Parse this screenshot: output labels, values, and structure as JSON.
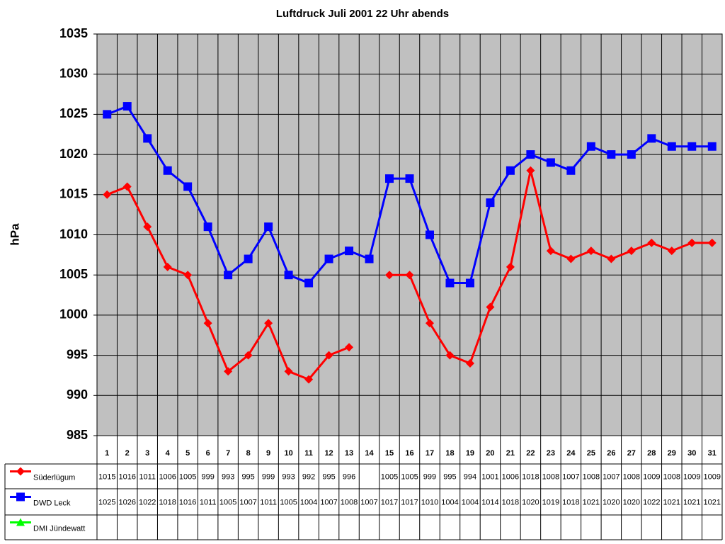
{
  "chart_data": {
    "type": "line",
    "title": "Luftdruck Juli 2001 22 Uhr abends",
    "y_label": "hPa",
    "categories": [
      "1",
      "2",
      "3",
      "4",
      "5",
      "6",
      "7",
      "8",
      "9",
      "10",
      "11",
      "12",
      "13",
      "14",
      "15",
      "16",
      "17",
      "18",
      "19",
      "20",
      "21",
      "22",
      "23",
      "24",
      "25",
      "26",
      "27",
      "28",
      "29",
      "30",
      "31"
    ],
    "series": [
      {
        "name": "Süderlügum",
        "color": "#ff0000",
        "marker": "diamond",
        "values": [
          1015,
          1016,
          1011,
          1006,
          1005,
          999,
          993,
          995,
          999,
          993,
          992,
          995,
          996,
          null,
          1005,
          1005,
          999,
          995,
          994,
          1001,
          1006,
          1018,
          1008,
          1007,
          1008,
          1007,
          1008,
          1009,
          1008,
          1009,
          1009
        ]
      },
      {
        "name": "DWD Leck",
        "color": "#0000ff",
        "marker": "square",
        "values": [
          1025,
          1026,
          1022,
          1018,
          1016,
          1011,
          1005,
          1007,
          1011,
          1005,
          1004,
          1007,
          1008,
          1007,
          1017,
          1017,
          1010,
          1004,
          1004,
          1014,
          1018,
          1020,
          1019,
          1018,
          1021,
          1020,
          1020,
          1022,
          1021,
          1021,
          1021
        ]
      },
      {
        "name": "DMI Jündewatt",
        "color": "#00ff00",
        "marker": "triangle",
        "values": [
          null,
          null,
          null,
          null,
          null,
          null,
          null,
          null,
          null,
          null,
          null,
          null,
          null,
          null,
          null,
          null,
          null,
          null,
          null,
          null,
          null,
          null,
          null,
          null,
          null,
          null,
          null,
          null,
          null,
          null,
          null
        ]
      }
    ],
    "ylim": [
      985,
      1035
    ],
    "yticks": [
      985,
      990,
      995,
      1000,
      1005,
      1010,
      1015,
      1020,
      1025,
      1030,
      1035
    ],
    "grid": true,
    "data_table": true
  }
}
